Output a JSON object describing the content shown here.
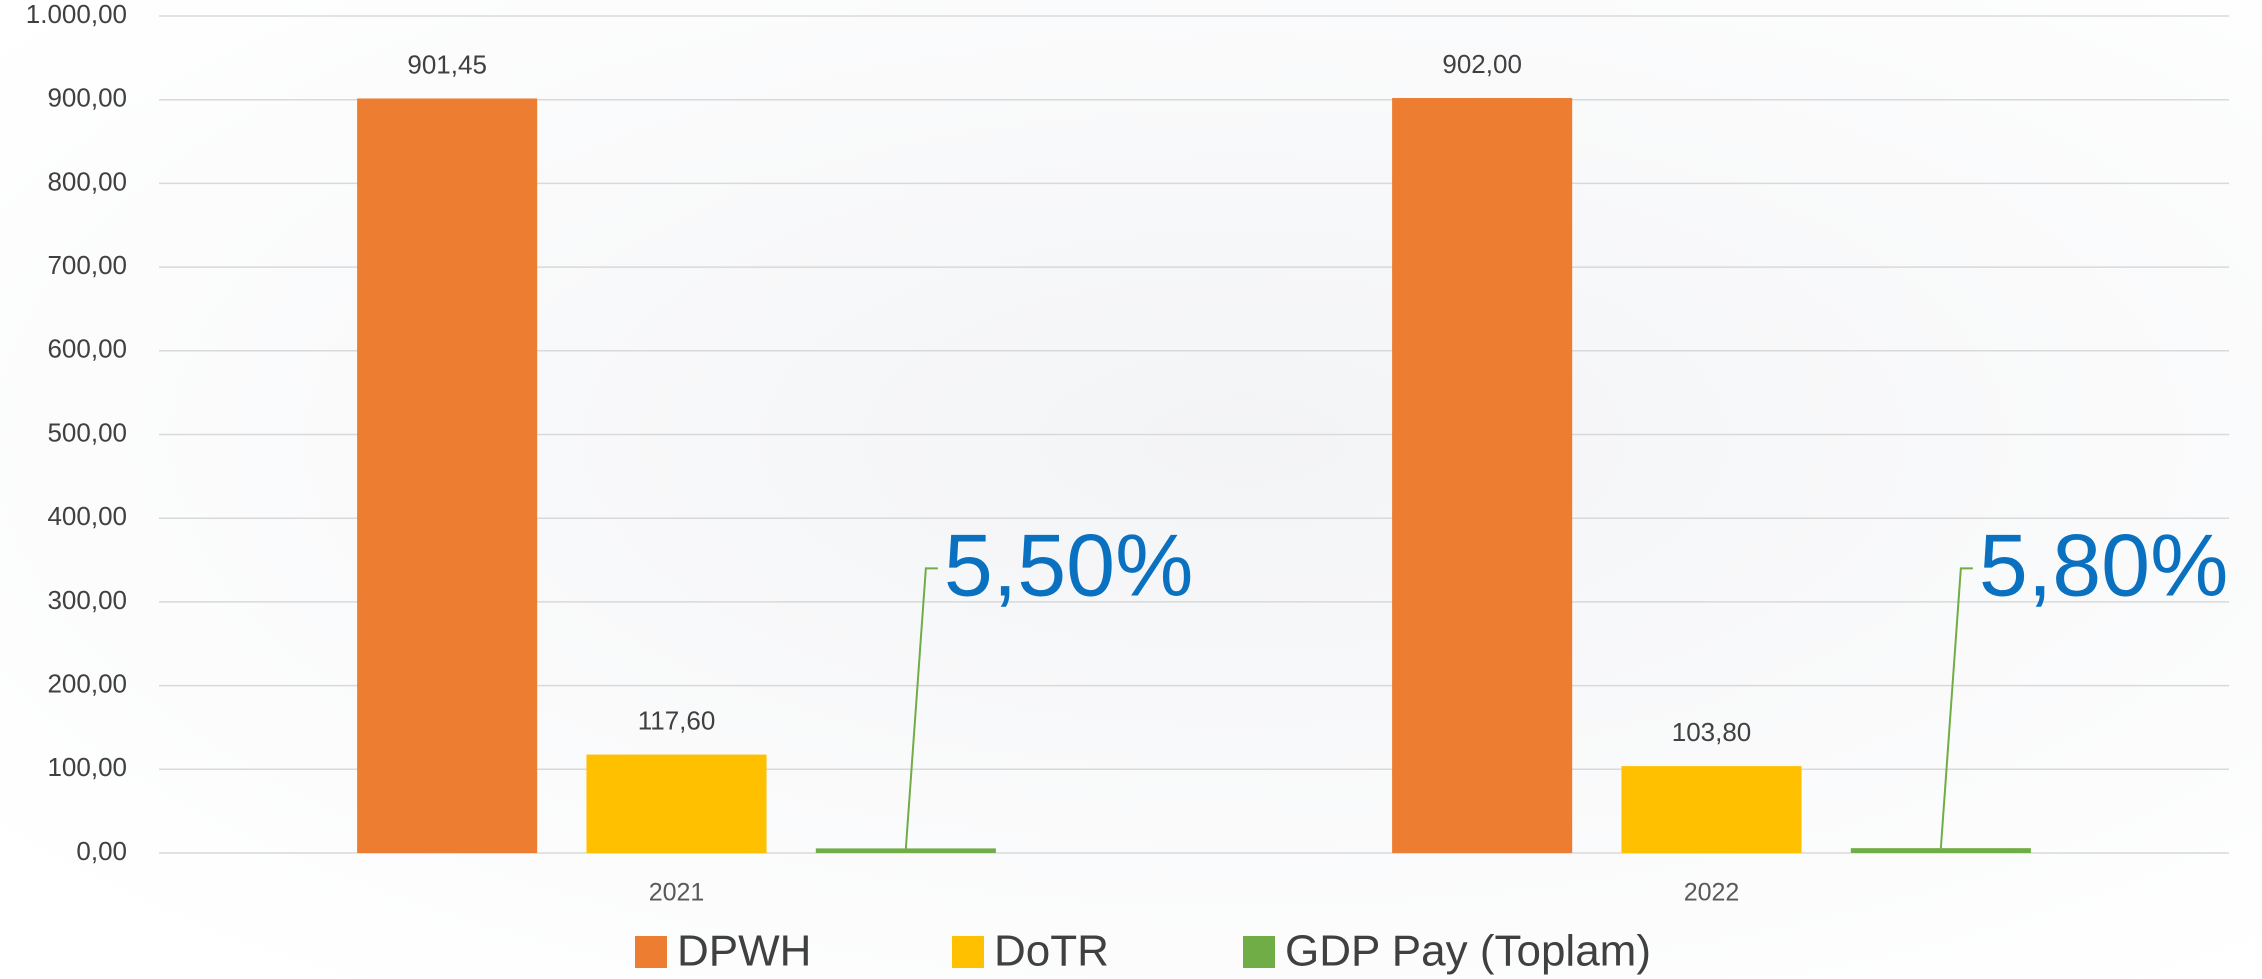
{
  "chart_data": {
    "type": "bar",
    "categories": [
      "2021",
      "2022"
    ],
    "series": [
      {
        "name": "DPWH",
        "color": "#ed7d31",
        "values": [
          901.45,
          902.0
        ],
        "value_labels": [
          "901,45",
          "902,00"
        ]
      },
      {
        "name": "DoTR",
        "color": "#ffc000",
        "values": [
          117.6,
          103.8
        ],
        "value_labels": [
          "117,60",
          "103,80"
        ]
      },
      {
        "name": "GDP Pay (Toplam)",
        "color": "#70ad47",
        "values": [
          5.5,
          5.8
        ],
        "value_labels": [
          "5,50%",
          "5,80%"
        ]
      }
    ],
    "ylim": [
      0,
      1000
    ],
    "yticks": [
      {
        "value": 0,
        "label": "0,00"
      },
      {
        "value": 100,
        "label": "100,00"
      },
      {
        "value": 200,
        "label": "200,00"
      },
      {
        "value": 300,
        "label": "300,00"
      },
      {
        "value": 400,
        "label": "400,00"
      },
      {
        "value": 500,
        "label": "500,00"
      },
      {
        "value": 600,
        "label": "600,00"
      },
      {
        "value": 700,
        "label": "700,00"
      },
      {
        "value": 800,
        "label": "800,00"
      },
      {
        "value": 900,
        "label": "900,00"
      },
      {
        "value": 1000,
        "label": "1.000,00"
      }
    ],
    "grid": true,
    "legend": "bottom"
  }
}
